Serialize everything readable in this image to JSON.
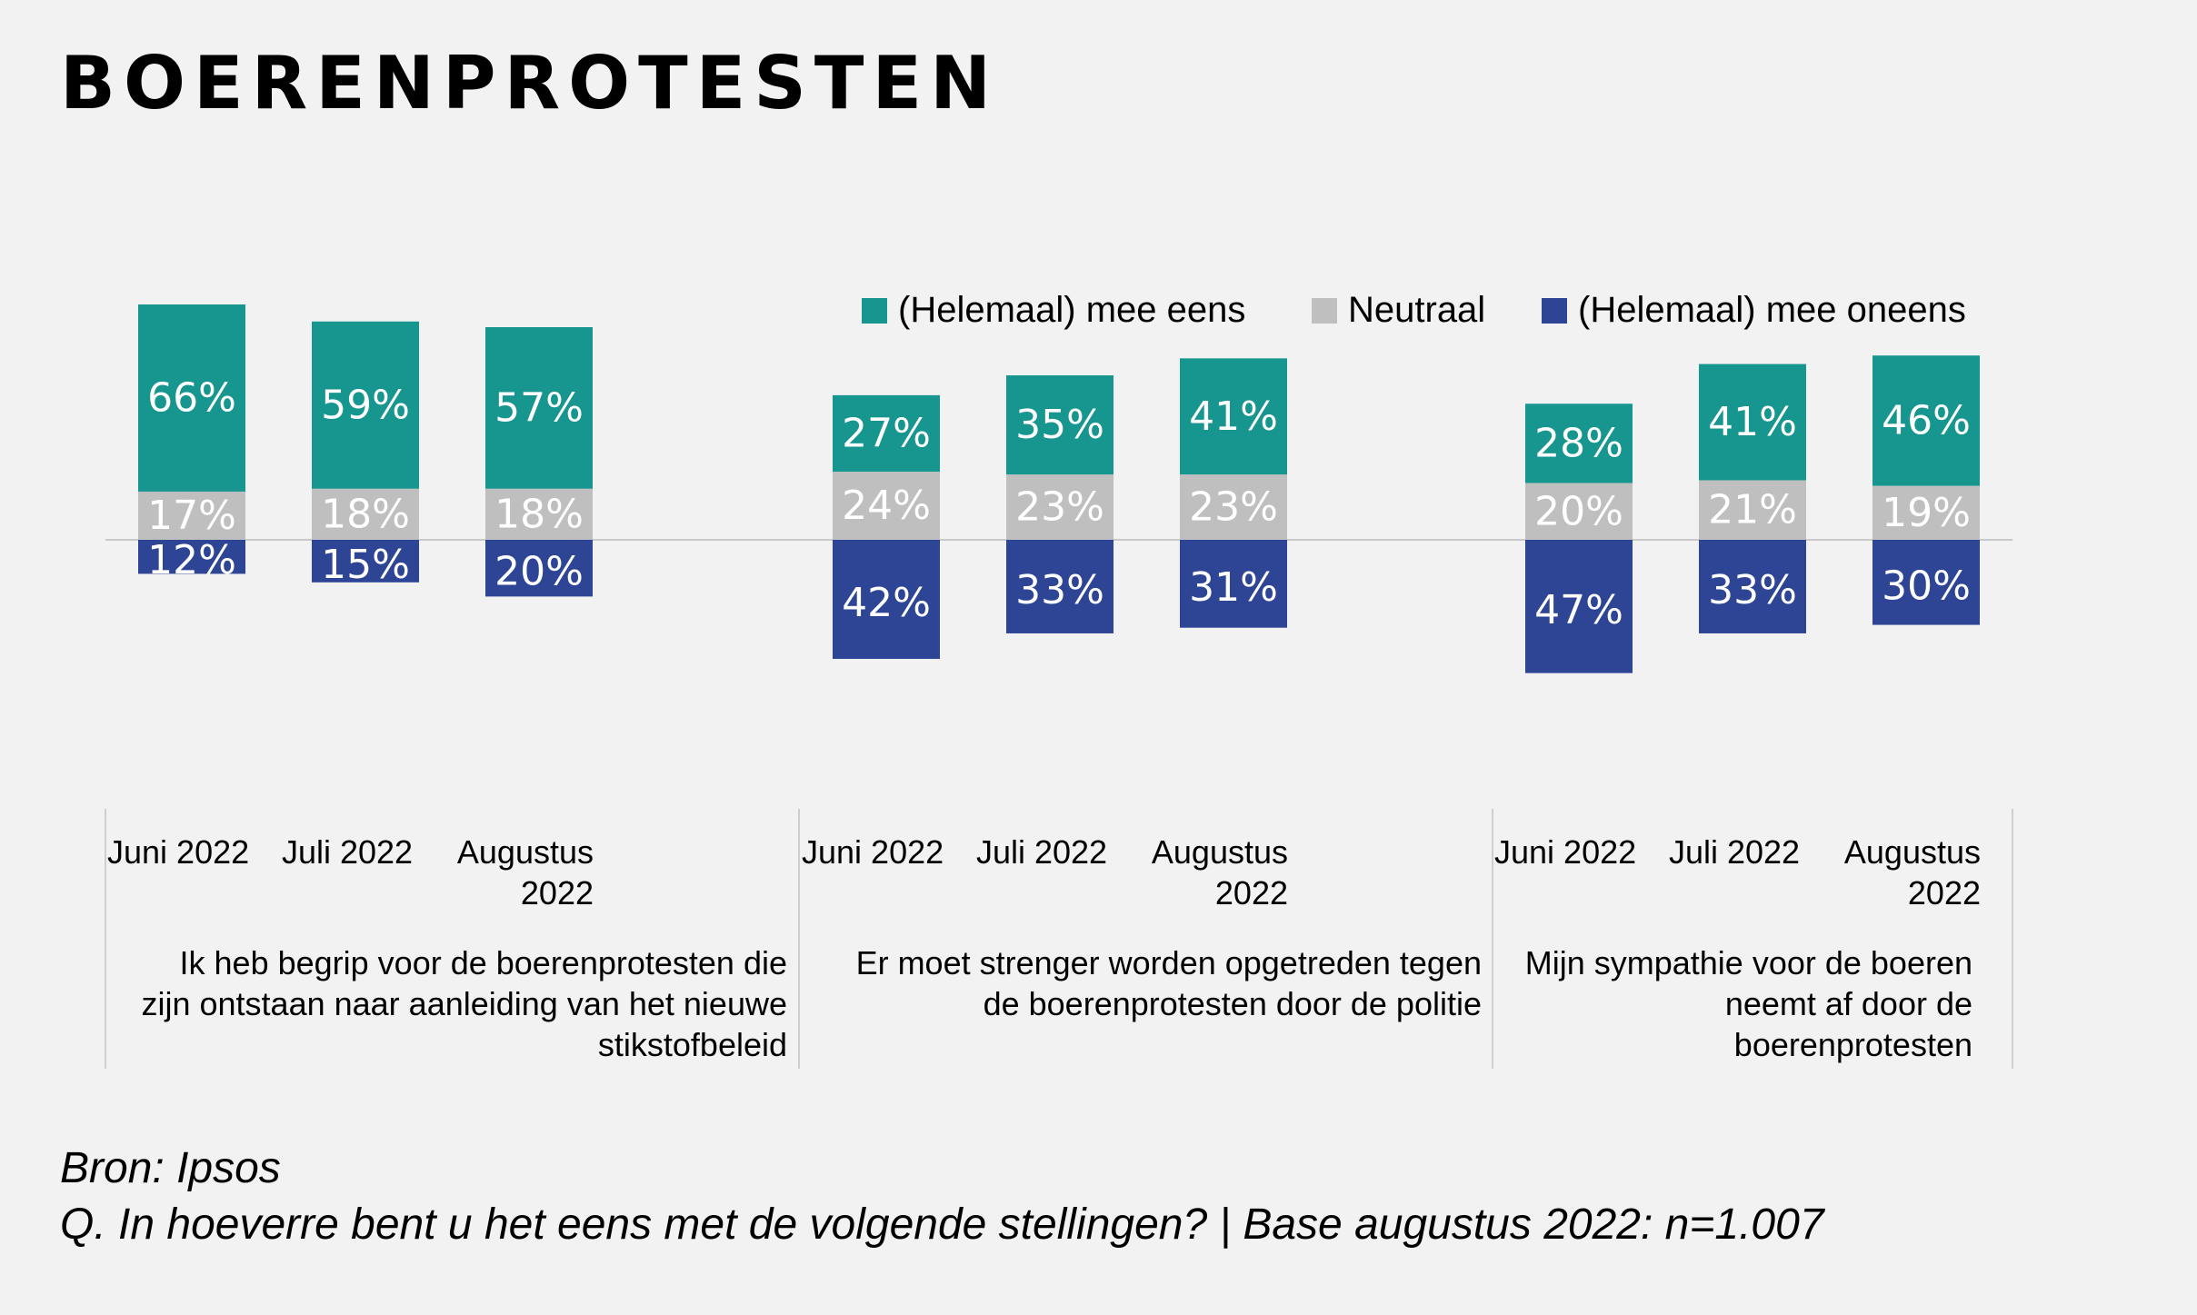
{
  "title": "BOERENPROTESTEN",
  "chart_data": {
    "type": "bar",
    "stacked": "diverging",
    "legend": {
      "position": "top-right",
      "entries": [
        "(Helemaal) mee eens",
        "Neutraal",
        "(Helemaal) mee oneens"
      ]
    },
    "series_colors": {
      "agree": "#17958f",
      "neutral": "#bfbfbf",
      "disagree": "#2e4595"
    },
    "groups": [
      {
        "label": "Ik heb begrip voor de boerenprotesten die zijn ontstaan naar aanleiding van het nieuwe stikstofbeleid",
        "label_lines": [
          "Ik heb begrip voor de boerenprotesten die",
          "zijn ontstaan naar aanleiding van het nieuwe",
          "stikstofbeleid"
        ],
        "categories": [
          {
            "lines": [
              "Juni 2022"
            ]
          },
          {
            "lines": [
              "Juli 2022"
            ]
          },
          {
            "lines": [
              "Augustus",
              "2022"
            ]
          }
        ],
        "agree": [
          66,
          59,
          57
        ],
        "neutral": [
          17,
          18,
          18
        ],
        "disagree": [
          12,
          15,
          20
        ]
      },
      {
        "label": "Er moet strenger worden opgetreden tegen de boerenprotesten door de politie",
        "label_lines": [
          "Er moet strenger worden opgetreden tegen",
          "de boerenprotesten door de politie"
        ],
        "categories": [
          {
            "lines": [
              "Juni 2022"
            ]
          },
          {
            "lines": [
              "Juli 2022"
            ]
          },
          {
            "lines": [
              "Augustus",
              "2022"
            ]
          }
        ],
        "agree": [
          27,
          35,
          41
        ],
        "neutral": [
          24,
          23,
          23
        ],
        "disagree": [
          42,
          33,
          31
        ]
      },
      {
        "label": "Mijn sympathie voor de boeren neemt af door de boerenprotesten",
        "label_lines": [
          "Mijn sympathie voor de boeren",
          "neemt af door de",
          "boerenprotesten"
        ],
        "categories": [
          {
            "lines": [
              "Juni 2022"
            ]
          },
          {
            "lines": [
              "Juli 2022"
            ]
          },
          {
            "lines": [
              "Augustus",
              "2022"
            ]
          }
        ],
        "agree": [
          28,
          41,
          46
        ],
        "neutral": [
          20,
          21,
          19
        ],
        "disagree": [
          47,
          33,
          30
        ]
      }
    ],
    "value_suffix": "%"
  },
  "source": "Bron: Ipsos",
  "question": "Q. In hoeverre bent u het eens met de volgende stellingen? | Base augustus 2022: n=1.007"
}
